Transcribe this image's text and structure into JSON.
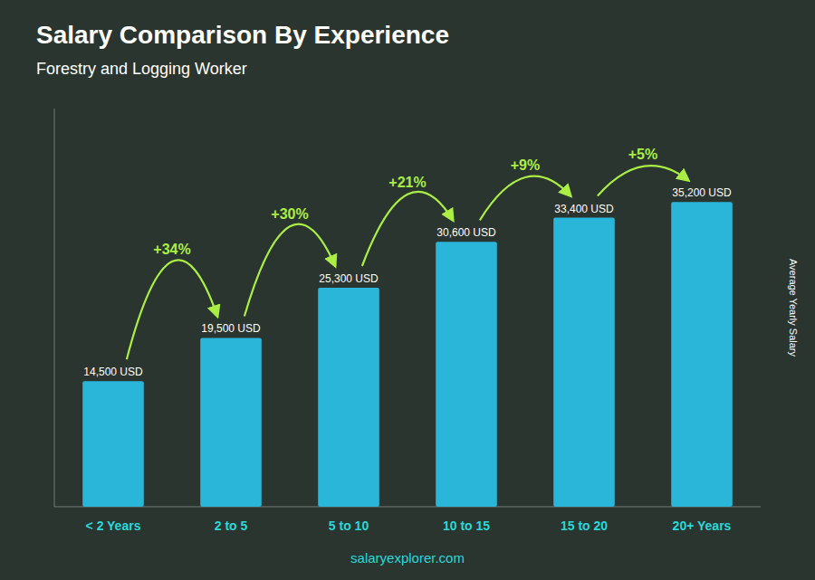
{
  "chart_data": {
    "type": "bar",
    "title": "Salary Comparison By Experience",
    "subtitle": "Forestry and Logging Worker",
    "y_label": "Average Yearly Salary",
    "categories": [
      "< 2 Years",
      "2 to 5",
      "5 to 10",
      "10 to 15",
      "15 to 20",
      "20+ Years"
    ],
    "values": [
      14500,
      19500,
      25300,
      30600,
      33400,
      35200
    ],
    "value_labels": [
      "14,500 USD",
      "19,500 USD",
      "25,300 USD",
      "30,600 USD",
      "33,400 USD",
      "35,200 USD"
    ],
    "data_labels": true,
    "color": "#29b6d8",
    "annotations": [
      "+34%",
      "+30%",
      "+21%",
      "+9%",
      "+5%"
    ],
    "footer": "salaryexplorer.com",
    "ylim": [
      0,
      46000
    ],
    "grid": false,
    "tick_labels": "x"
  }
}
